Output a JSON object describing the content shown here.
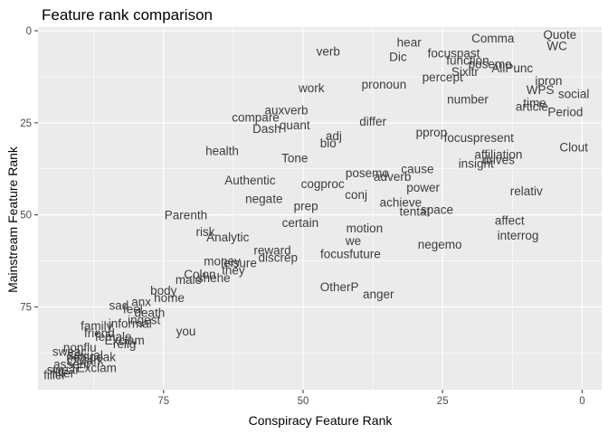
{
  "chart_data": {
    "type": "scatter",
    "title": "Feature rank comparison",
    "xlabel": "Conspiracy Feature Rank",
    "ylabel": "Mainstream Feature Rank",
    "x_reversed": true,
    "y_reversed": true,
    "xlim": [
      97.5,
      -3.5
    ],
    "ylim": [
      -1,
      97.5
    ],
    "x_ticks": [
      75,
      50,
      25,
      0
    ],
    "y_ticks": [
      0,
      25,
      50,
      75
    ],
    "grid": true,
    "legend": "none",
    "points": [
      {
        "label": "Quote",
        "x": 4,
        "y": 1
      },
      {
        "label": "WC",
        "x": 4.5,
        "y": 4
      },
      {
        "label": "Comma",
        "x": 16,
        "y": 2
      },
      {
        "label": "hear",
        "x": 31,
        "y": 3
      },
      {
        "label": "focuspast",
        "x": 23,
        "y": 6
      },
      {
        "label": "verb",
        "x": 45.5,
        "y": 5.5
      },
      {
        "label": "Dic",
        "x": 33,
        "y": 7
      },
      {
        "label": "function",
        "x": 20.5,
        "y": 8
      },
      {
        "label": "posemo",
        "x": 16.5,
        "y": 9
      },
      {
        "label": "AllPunc",
        "x": 12.5,
        "y": 10
      },
      {
        "label": "Sixltr",
        "x": 21,
        "y": 11
      },
      {
        "label": "percept",
        "x": 25,
        "y": 12.5
      },
      {
        "label": "ipron",
        "x": 6,
        "y": 13.5
      },
      {
        "label": "pronoun",
        "x": 35.5,
        "y": 14.5
      },
      {
        "label": "work",
        "x": 48.5,
        "y": 15.5
      },
      {
        "label": "WPS",
        "x": 7.5,
        "y": 16
      },
      {
        "label": "social",
        "x": 1.5,
        "y": 17
      },
      {
        "label": "number",
        "x": 20.5,
        "y": 18.5
      },
      {
        "label": "time",
        "x": 8.5,
        "y": 19.5
      },
      {
        "label": "article",
        "x": 9,
        "y": 20.5
      },
      {
        "label": "auxverb",
        "x": 53,
        "y": 21.5
      },
      {
        "label": "Period",
        "x": 3,
        "y": 22
      },
      {
        "label": "compare",
        "x": 58.5,
        "y": 23.5
      },
      {
        "label": "differ",
        "x": 37.5,
        "y": 24.5
      },
      {
        "label": "quant",
        "x": 51.5,
        "y": 25.5
      },
      {
        "label": "Dash",
        "x": 56.5,
        "y": 26.5
      },
      {
        "label": "pprop",
        "x": 27,
        "y": 27.5
      },
      {
        "label": "adj",
        "x": 44.5,
        "y": 28.5
      },
      {
        "label": "focuspresent",
        "x": 18.5,
        "y": 29
      },
      {
        "label": "bio",
        "x": 45.5,
        "y": 30.5
      },
      {
        "label": "Clout",
        "x": 1.5,
        "y": 31.5
      },
      {
        "label": "health",
        "x": 64.5,
        "y": 32.5
      },
      {
        "label": "affiliation",
        "x": 15,
        "y": 33.5
      },
      {
        "label": "Tone",
        "x": 51.5,
        "y": 34.5
      },
      {
        "label": "drives",
        "x": 15,
        "y": 35
      },
      {
        "label": "insight",
        "x": 19,
        "y": 36
      },
      {
        "label": "cause",
        "x": 29.5,
        "y": 37.5
      },
      {
        "label": "posemo",
        "x": 38.5,
        "y": 38.5
      },
      {
        "label": "adverb",
        "x": 34,
        "y": 39.5
      },
      {
        "label": "Authentic",
        "x": 59.5,
        "y": 40.5
      },
      {
        "label": "cogproc",
        "x": 46.5,
        "y": 41.5
      },
      {
        "label": "power",
        "x": 28.5,
        "y": 42.5
      },
      {
        "label": "relativ",
        "x": 10,
        "y": 43.5
      },
      {
        "label": "conj",
        "x": 40.5,
        "y": 44.5
      },
      {
        "label": "negate",
        "x": 57,
        "y": 45.5
      },
      {
        "label": "achieve",
        "x": 32.5,
        "y": 46.5
      },
      {
        "label": "prep",
        "x": 49.5,
        "y": 47.5
      },
      {
        "label": "space",
        "x": 26,
        "y": 48.5
      },
      {
        "label": "tentat",
        "x": 30,
        "y": 49
      },
      {
        "label": "Parenth",
        "x": 71,
        "y": 50
      },
      {
        "label": "affect",
        "x": 13,
        "y": 51.5
      },
      {
        "label": "certain",
        "x": 50.5,
        "y": 52
      },
      {
        "label": "motion",
        "x": 39,
        "y": 53.5
      },
      {
        "label": "risk",
        "x": 67.5,
        "y": 54.5
      },
      {
        "label": "interrog",
        "x": 11.5,
        "y": 55.5
      },
      {
        "label": "Analytic",
        "x": 63.5,
        "y": 56
      },
      {
        "label": "we",
        "x": 41,
        "y": 57
      },
      {
        "label": "negemo",
        "x": 25.5,
        "y": 58
      },
      {
        "label": "reward",
        "x": 55.5,
        "y": 59.5
      },
      {
        "label": "focusfuture",
        "x": 41.5,
        "y": 60.5
      },
      {
        "label": "discrep",
        "x": 54.5,
        "y": 61.5
      },
      {
        "label": "money",
        "x": 64.5,
        "y": 62.5
      },
      {
        "label": "leisure",
        "x": 61.5,
        "y": 63
      },
      {
        "label": "they",
        "x": 62.5,
        "y": 65
      },
      {
        "label": "Colon",
        "x": 68.5,
        "y": 66
      },
      {
        "label": "male",
        "x": 70.5,
        "y": 67.5
      },
      {
        "label": "shehe",
        "x": 66,
        "y": 67
      },
      {
        "label": "OtherP",
        "x": 43.5,
        "y": 69.5
      },
      {
        "label": "body",
        "x": 75,
        "y": 70.5
      },
      {
        "label": "anger",
        "x": 36.5,
        "y": 71.5
      },
      {
        "label": "home",
        "x": 74,
        "y": 72.5
      },
      {
        "label": "anx",
        "x": 79,
        "y": 73.5
      },
      {
        "label": "sad",
        "x": 83,
        "y": 74.5
      },
      {
        "label": "feel",
        "x": 80.5,
        "y": 75.5
      },
      {
        "label": "death",
        "x": 77.5,
        "y": 76.5
      },
      {
        "label": "ingest",
        "x": 78.5,
        "y": 78.5
      },
      {
        "label": "informal",
        "x": 81,
        "y": 79.5
      },
      {
        "label": "family",
        "x": 87,
        "y": 80
      },
      {
        "label": "you",
        "x": 71,
        "y": 81.5
      },
      {
        "label": "friend",
        "x": 86.5,
        "y": 82
      },
      {
        "label": "female",
        "x": 84,
        "y": 83
      },
      {
        "label": "Exclam",
        "x": 82,
        "y": 84
      },
      {
        "label": "relig",
        "x": 82,
        "y": 85
      },
      {
        "label": "filler",
        "x": 93,
        "y": 93
      },
      {
        "label": "nonflu",
        "x": 90,
        "y": 86
      },
      {
        "label": "swear",
        "x": 92,
        "y": 87
      },
      {
        "label": "sexual",
        "x": 89,
        "y": 88
      },
      {
        "label": "netspeak",
        "x": 88,
        "y": 88.5
      },
      {
        "label": "QMark",
        "x": 89,
        "y": 89.5
      },
      {
        "label": "assent",
        "x": 91.5,
        "y": 90.5
      },
      {
        "label": "Exclam",
        "x": 87,
        "y": 91.5
      },
      {
        "label": "filler",
        "x": 94.5,
        "y": 93.5
      },
      {
        "label": "swear",
        "x": 93,
        "y": 92
      }
    ]
  }
}
